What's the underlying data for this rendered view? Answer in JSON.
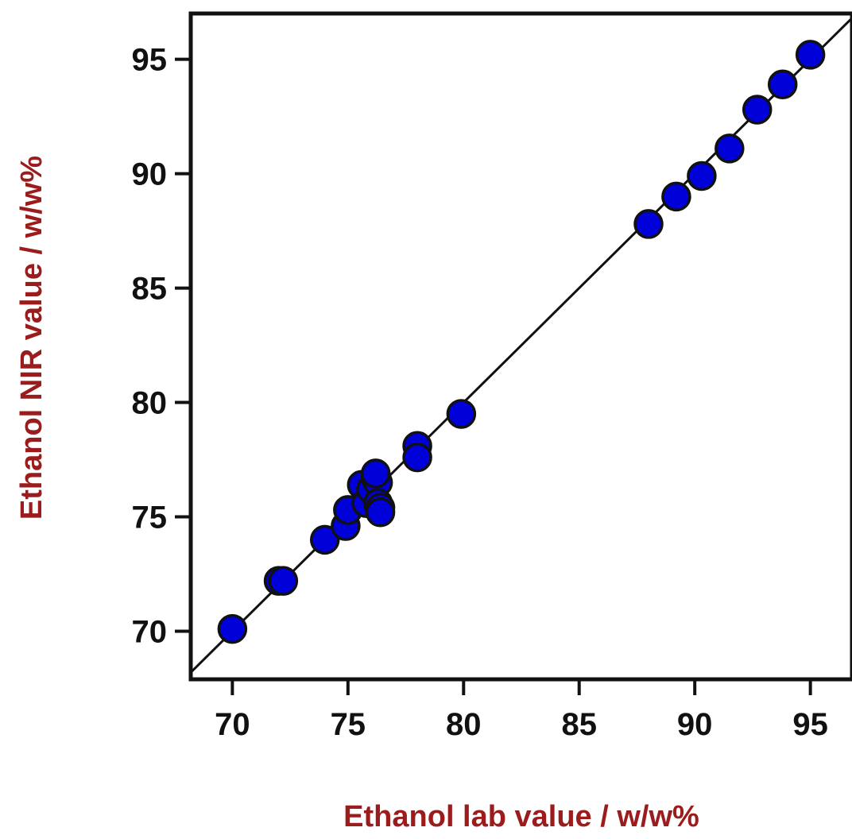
{
  "chart_data": {
    "type": "scatter",
    "title": "",
    "xlabel": "Ethanol lab value / w/w%",
    "ylabel": "Ethanol NIR value / w/w%",
    "xlim": [
      68.2,
      96.8
    ],
    "ylim": [
      67.9,
      97.0
    ],
    "xticks": [
      70,
      75,
      80,
      85,
      90,
      95
    ],
    "yticks": [
      70,
      75,
      80,
      85,
      90,
      95
    ],
    "grid": false,
    "legend": "none",
    "reference_line": {
      "type": "y=x",
      "color": "#111111"
    },
    "marker_color": "#0000d8",
    "marker_edge_color": "#111111",
    "label_color": "#9b1c1c",
    "series": [
      {
        "x": [
          70.0,
          72.0,
          72.2,
          74.0,
          74.9,
          75.0,
          75.6,
          75.8,
          76.0,
          76.2,
          76.3,
          76.3,
          76.4,
          76.4,
          76.2,
          78.0,
          78.0,
          79.9,
          88.0,
          89.2,
          90.3,
          91.5,
          92.7,
          93.8,
          95.0
        ],
        "y": [
          70.1,
          72.2,
          72.2,
          74.0,
          74.6,
          75.3,
          76.4,
          75.6,
          76.2,
          76.7,
          76.5,
          75.6,
          75.4,
          75.2,
          76.9,
          78.1,
          77.6,
          79.5,
          87.8,
          89.0,
          89.9,
          91.1,
          92.8,
          93.9,
          95.2
        ]
      }
    ]
  }
}
